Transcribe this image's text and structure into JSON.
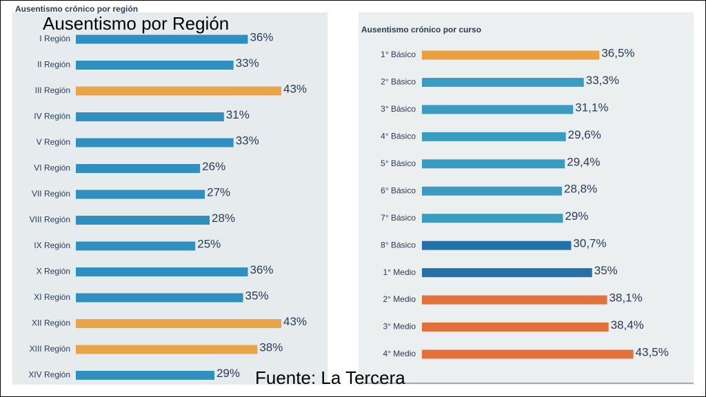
{
  "title": "Ausentismo por Región",
  "source": "Fuente: La Tercera",
  "chart_data": [
    {
      "type": "bar",
      "orientation": "horizontal",
      "title": "Ausentismo crónico por región",
      "categories": [
        "I Región",
        "II Región",
        "III Región",
        "IV Región",
        "V Región",
        "VI Región",
        "VII Región",
        "VIII Región",
        "IX Región",
        "X Región",
        "XI Región",
        "XII Región",
        "XIII Región",
        "XIV Región"
      ],
      "values": [
        36,
        33,
        43,
        31,
        33,
        26,
        27,
        28,
        25,
        36,
        35,
        43,
        38,
        29
      ],
      "value_labels": [
        "36%",
        "33%",
        "43%",
        "31%",
        "33%",
        "26%",
        "27%",
        "28%",
        "25%",
        "36%",
        "35%",
        "43%",
        "38%",
        "29%"
      ],
      "colors": [
        "#2f8fbf",
        "#2f8fbf",
        "#e9a449",
        "#2f8fbf",
        "#2f8fbf",
        "#2f8fbf",
        "#2f8fbf",
        "#2f8fbf",
        "#2f8fbf",
        "#2f8fbf",
        "#2f8fbf",
        "#e9a449",
        "#e9a449",
        "#2f8fbf"
      ]
    },
    {
      "type": "bar",
      "orientation": "horizontal",
      "title": "Ausentismo crónico por curso",
      "categories": [
        "1° Básico",
        "2° Básico",
        "3° Básico",
        "4° Básico",
        "5° Básico",
        "6° Básico",
        "7° Básico",
        "8° Básico",
        "1° Medio",
        "2° Medio",
        "3° Medio",
        "4° Medio"
      ],
      "values": [
        36.5,
        33.3,
        31.1,
        29.6,
        29.4,
        28.8,
        29,
        30.7,
        35,
        38.1,
        38.4,
        43.5
      ],
      "value_labels": [
        "36,5%",
        "33,3%",
        "31,1%",
        "29,6%",
        "29,4%",
        "28,8%",
        "29%",
        "30,7%",
        "35%",
        "38,1%",
        "38,4%",
        "43,5%"
      ],
      "colors": [
        "#e9a040",
        "#3a9cc0",
        "#3a9cc0",
        "#3a9cc0",
        "#3a9cc0",
        "#3a9cc0",
        "#3a9cc0",
        "#2371a8",
        "#2371a8",
        "#e2713b",
        "#e2713b",
        "#e2713b"
      ]
    }
  ]
}
